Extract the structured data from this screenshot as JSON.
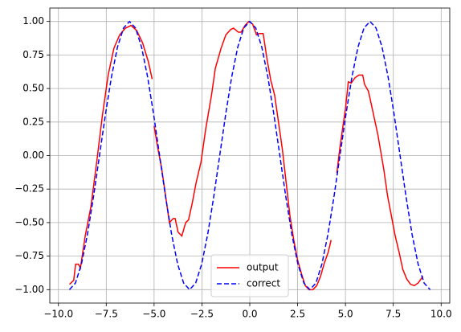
{
  "chart_data": {
    "type": "line",
    "xlim": [
      -10.45,
      10.45
    ],
    "ylim": [
      -1.1,
      1.1
    ],
    "xticks": [
      {
        "value": -10,
        "label": "−10.0"
      },
      {
        "value": -7.5,
        "label": "−7.5"
      },
      {
        "value": -5,
        "label": "−5.0"
      },
      {
        "value": -2.5,
        "label": "−2.5"
      },
      {
        "value": 0,
        "label": "0.0"
      },
      {
        "value": 2.5,
        "label": "2.5"
      },
      {
        "value": 5,
        "label": "5.0"
      },
      {
        "value": 7.5,
        "label": "7.5"
      },
      {
        "value": 10,
        "label": "10.0"
      }
    ],
    "yticks": [
      {
        "value": -1,
        "label": "−1.00"
      },
      {
        "value": -0.75,
        "label": "−0.75"
      },
      {
        "value": -0.5,
        "label": "−0.50"
      },
      {
        "value": -0.25,
        "label": "−0.25"
      },
      {
        "value": 0,
        "label": "0.00"
      },
      {
        "value": 0.25,
        "label": "0.25"
      },
      {
        "value": 0.5,
        "label": "0.50"
      },
      {
        "value": 0.75,
        "label": "0.75"
      },
      {
        "value": 1,
        "label": "1.00"
      }
    ],
    "grid": true,
    "legend": "lower center",
    "series": [
      {
        "name": "output",
        "color": "#ff0000",
        "linestyle": "solid",
        "x": [
          -9.42,
          -9.2,
          -9.1,
          -8.95,
          -8.85,
          -8.6,
          -8.3,
          -8.0,
          -7.7,
          -7.4,
          -7.1,
          -6.8,
          -6.5,
          -6.2,
          -5.9,
          -5.6,
          -5.3,
          -5.1,
          null,
          -5.0,
          -4.8,
          -4.6,
          -4.4,
          -4.2,
          -4.0,
          -3.9,
          -3.75,
          -3.55,
          -3.35,
          -3.2,
          -3.0,
          -2.8,
          -2.55,
          -2.3,
          -2.0,
          -1.8,
          -1.5,
          -1.25,
          -1.0,
          -0.85,
          -0.6,
          -0.45,
          -0.25,
          -0.05,
          0.15,
          0.35,
          0.5,
          0.7,
          0.9,
          1.1,
          1.3,
          1.5,
          1.7,
          1.9,
          2.1,
          2.3,
          2.5,
          2.7,
          2.9,
          3.1,
          3.3,
          3.5,
          3.7,
          3.9,
          4.1,
          4.25,
          null,
          4.55,
          4.7,
          4.85,
          5.0,
          5.15,
          5.3,
          5.5,
          5.7,
          5.9,
          6.0,
          6.2,
          6.4,
          6.7,
          7.0,
          7.2,
          7.4,
          7.6,
          7.8,
          8.0,
          8.2,
          8.4,
          8.6,
          8.8,
          9.05
        ],
        "values": [
          -0.96,
          -0.93,
          -0.81,
          -0.81,
          -0.84,
          -0.6,
          -0.38,
          -0.05,
          0.3,
          0.6,
          0.8,
          0.9,
          0.95,
          0.97,
          0.93,
          0.84,
          0.7,
          0.57,
          null,
          0.22,
          0.05,
          -0.1,
          -0.3,
          -0.5,
          -0.47,
          -0.47,
          -0.57,
          -0.6,
          -0.5,
          -0.48,
          -0.35,
          -0.2,
          -0.05,
          0.2,
          0.45,
          0.65,
          0.8,
          0.9,
          0.94,
          0.95,
          0.92,
          0.92,
          0.97,
          1.0,
          0.98,
          0.9,
          0.91,
          0.91,
          0.72,
          0.56,
          0.45,
          0.25,
          0.05,
          -0.2,
          -0.45,
          -0.63,
          -0.78,
          -0.88,
          -0.97,
          -1.0,
          -1.0,
          -0.97,
          -0.9,
          -0.8,
          -0.72,
          -0.63,
          null,
          -0.13,
          0.05,
          0.2,
          0.35,
          0.55,
          0.54,
          0.58,
          0.6,
          0.6,
          0.53,
          0.48,
          0.35,
          0.15,
          -0.1,
          -0.3,
          -0.45,
          -0.6,
          -0.72,
          -0.85,
          -0.92,
          -0.96,
          -0.97,
          -0.95,
          -0.9
        ]
      },
      {
        "name": "correct",
        "color": "#0000ff",
        "linestyle": "dashed",
        "x": [
          -9.425,
          -9.111,
          -8.796,
          -8.482,
          -8.168,
          -7.854,
          -7.54,
          -7.226,
          -6.912,
          -6.597,
          -6.283,
          -5.969,
          -5.655,
          -5.341,
          -5.027,
          -4.712,
          -4.398,
          -4.084,
          -3.77,
          -3.456,
          -3.142,
          -2.827,
          -2.513,
          -2.199,
          -1.885,
          -1.571,
          -1.257,
          -0.942,
          -0.628,
          -0.314,
          0,
          0.314,
          0.628,
          0.942,
          1.257,
          1.571,
          1.885,
          2.199,
          2.513,
          2.827,
          3.142,
          3.456,
          3.77,
          4.084,
          4.398,
          4.712,
          5.027,
          5.341,
          5.655,
          5.969,
          6.283,
          6.597,
          6.912,
          7.226,
          7.54,
          7.854,
          8.168,
          8.482,
          8.796,
          9.111,
          9.425
        ],
        "values": [
          -1,
          -0.951,
          -0.809,
          -0.588,
          -0.309,
          0,
          0.309,
          0.588,
          0.809,
          0.951,
          1,
          0.951,
          0.809,
          0.588,
          0.309,
          0,
          -0.309,
          -0.588,
          -0.809,
          -0.951,
          -1,
          -0.951,
          -0.809,
          -0.588,
          -0.309,
          0,
          0.309,
          0.588,
          0.809,
          0.951,
          1,
          0.951,
          0.809,
          0.588,
          0.309,
          0,
          -0.309,
          -0.588,
          -0.809,
          -0.951,
          -1,
          -0.951,
          -0.809,
          -0.588,
          -0.309,
          0,
          0.309,
          0.588,
          0.809,
          0.951,
          1,
          0.951,
          0.809,
          0.588,
          0.309,
          0,
          -0.309,
          -0.588,
          -0.809,
          -0.951,
          -1
        ]
      }
    ]
  }
}
